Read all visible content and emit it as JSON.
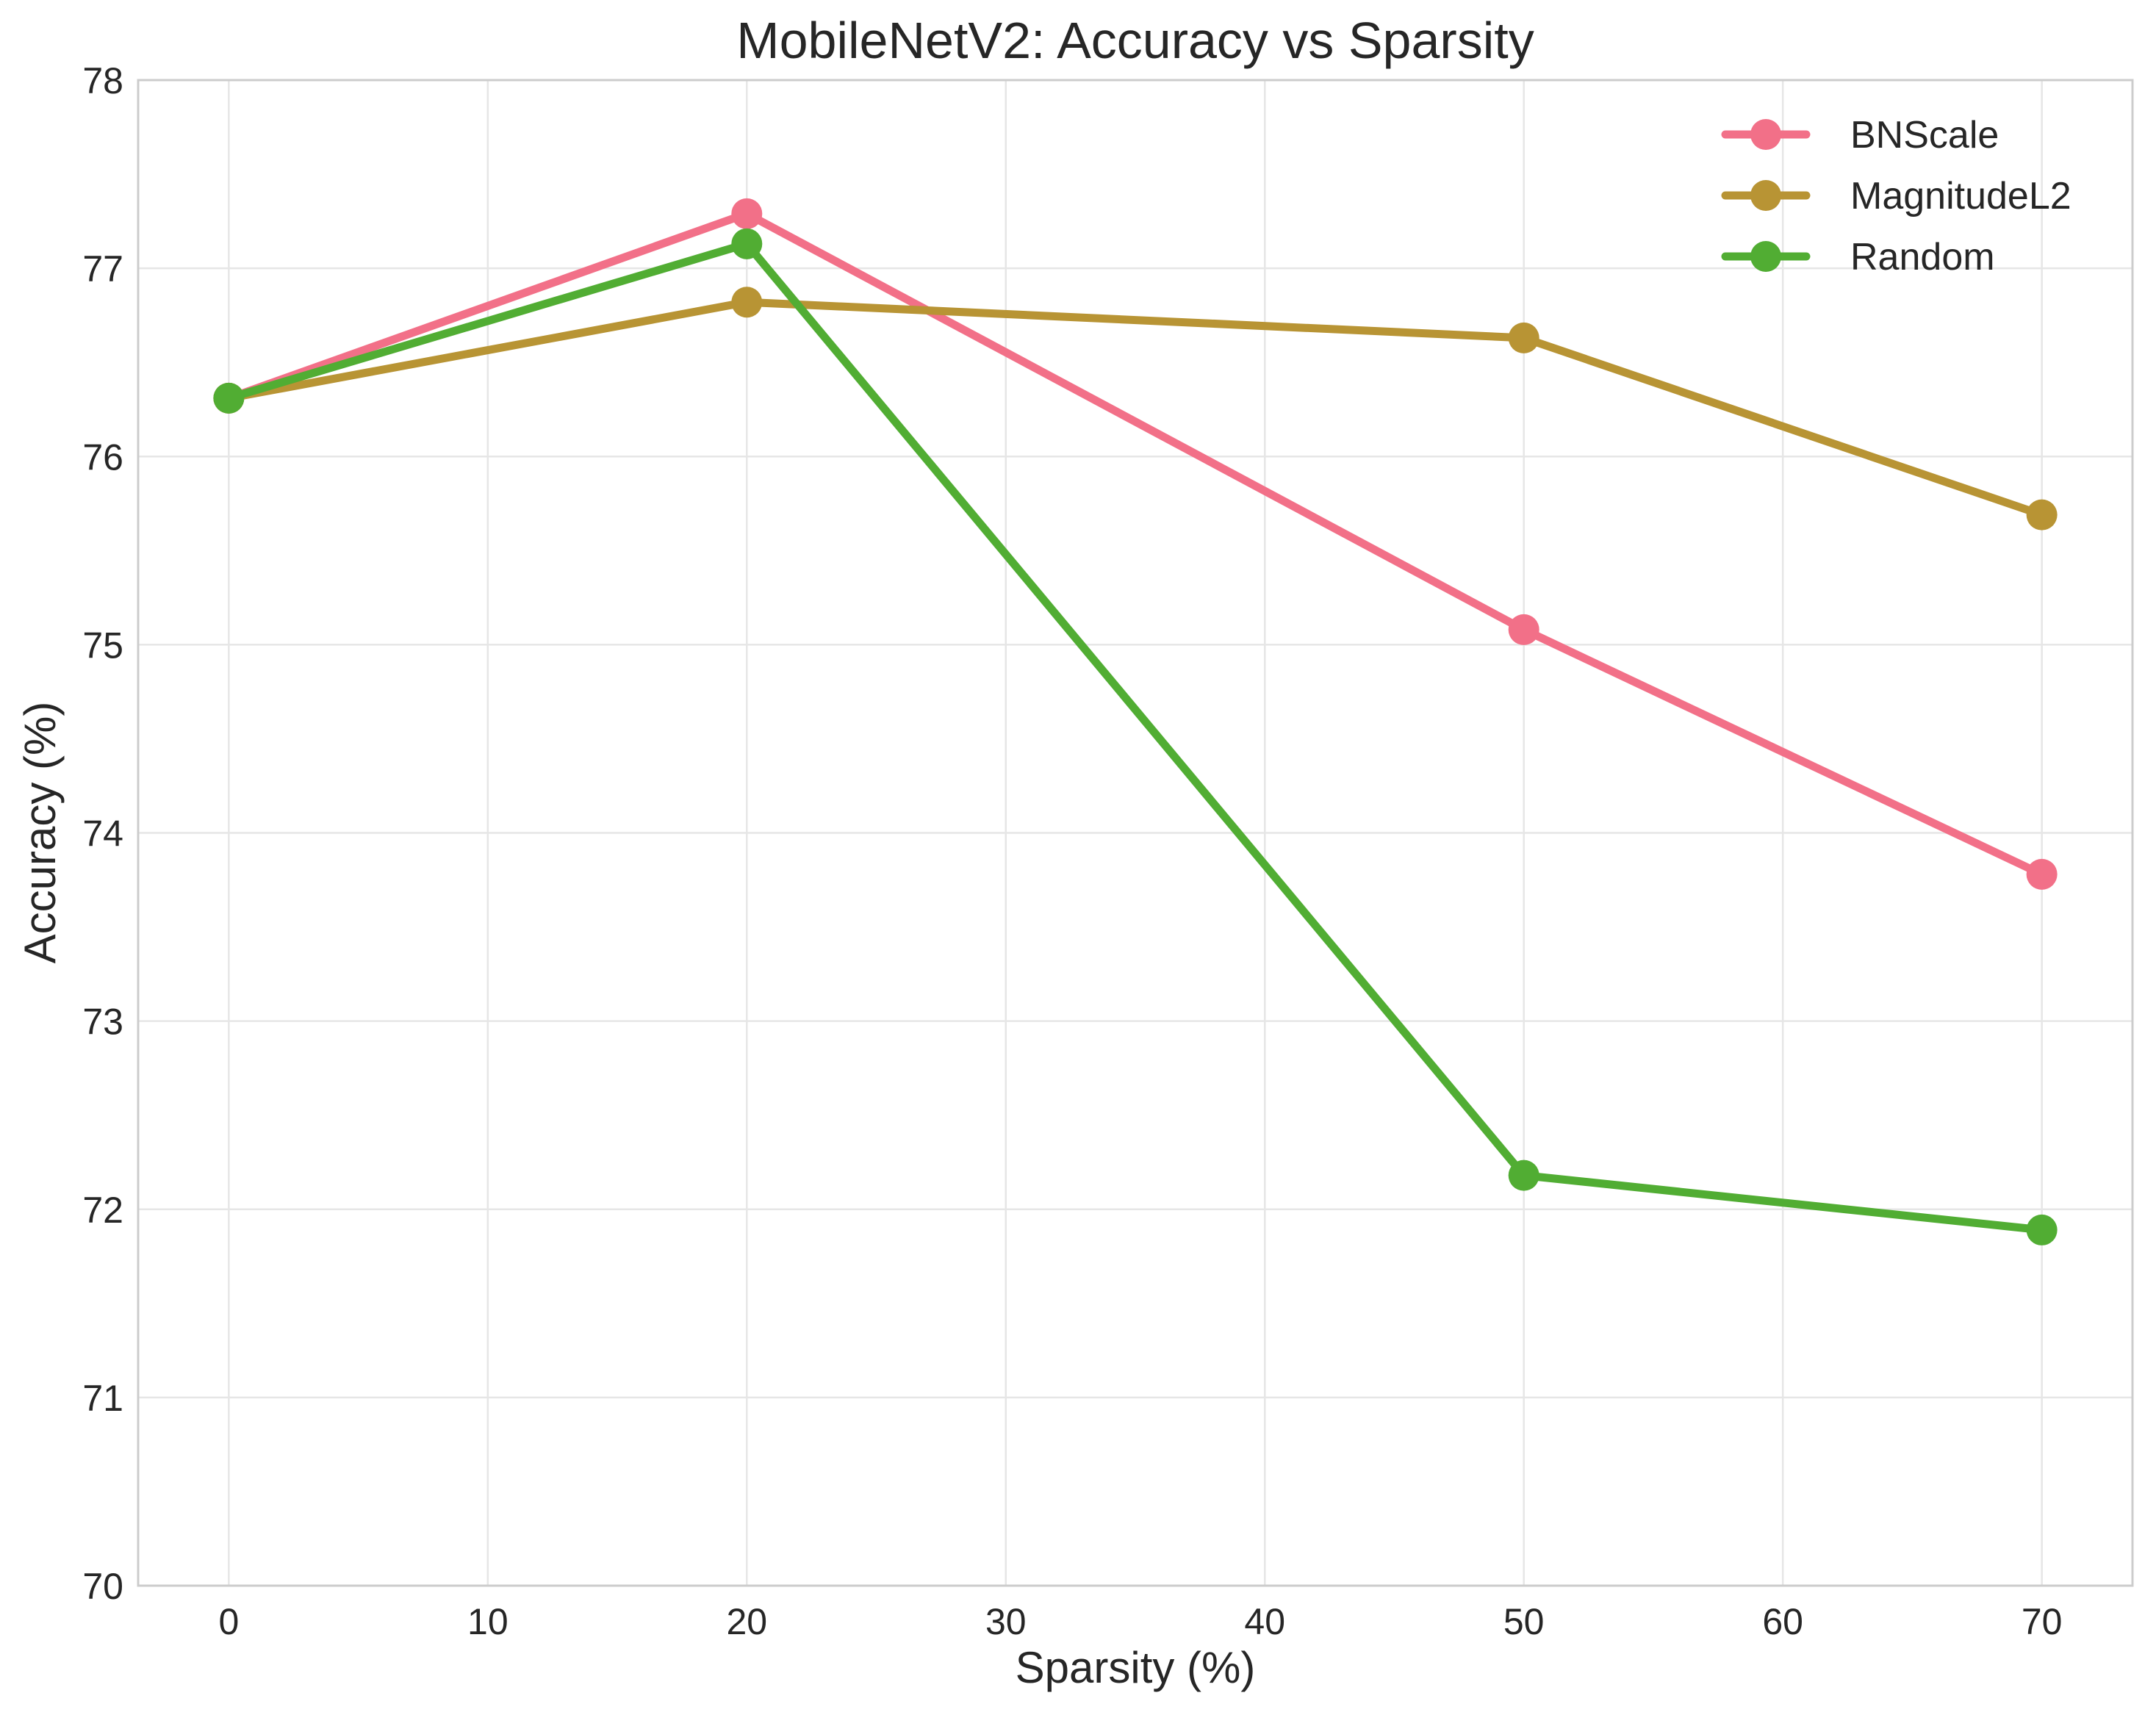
{
  "chart_data": {
    "type": "line",
    "title": "MobileNetV2: Accuracy vs Sparsity",
    "xlabel": "Sparsity (%)",
    "ylabel": "Accuracy (%)",
    "xlim": [
      -3.5,
      73.5
    ],
    "ylim": [
      70,
      78
    ],
    "x_ticks": [
      "0",
      "10",
      "20",
      "30",
      "40",
      "50",
      "60",
      "70"
    ],
    "x_tick_values": [
      0,
      10,
      20,
      30,
      40,
      50,
      60,
      70
    ],
    "y_ticks": [
      "70",
      "71",
      "72",
      "73",
      "74",
      "75",
      "76",
      "77",
      "78"
    ],
    "y_tick_values": [
      70,
      71,
      72,
      73,
      74,
      75,
      76,
      77,
      78
    ],
    "grid": true,
    "legend_position": "top-right",
    "x": [
      0,
      20,
      50,
      70
    ],
    "series": [
      {
        "name": "BNScale",
        "color": "#f27088",
        "values": [
          76.31,
          77.29,
          75.08,
          73.78
        ]
      },
      {
        "name": "MagnitudeL2",
        "color": "#b89434",
        "values": [
          76.31,
          76.82,
          76.63,
          75.69
        ]
      },
      {
        "name": "Random",
        "color": "#51ad33",
        "values": [
          76.31,
          77.13,
          72.18,
          71.89
        ]
      }
    ]
  }
}
